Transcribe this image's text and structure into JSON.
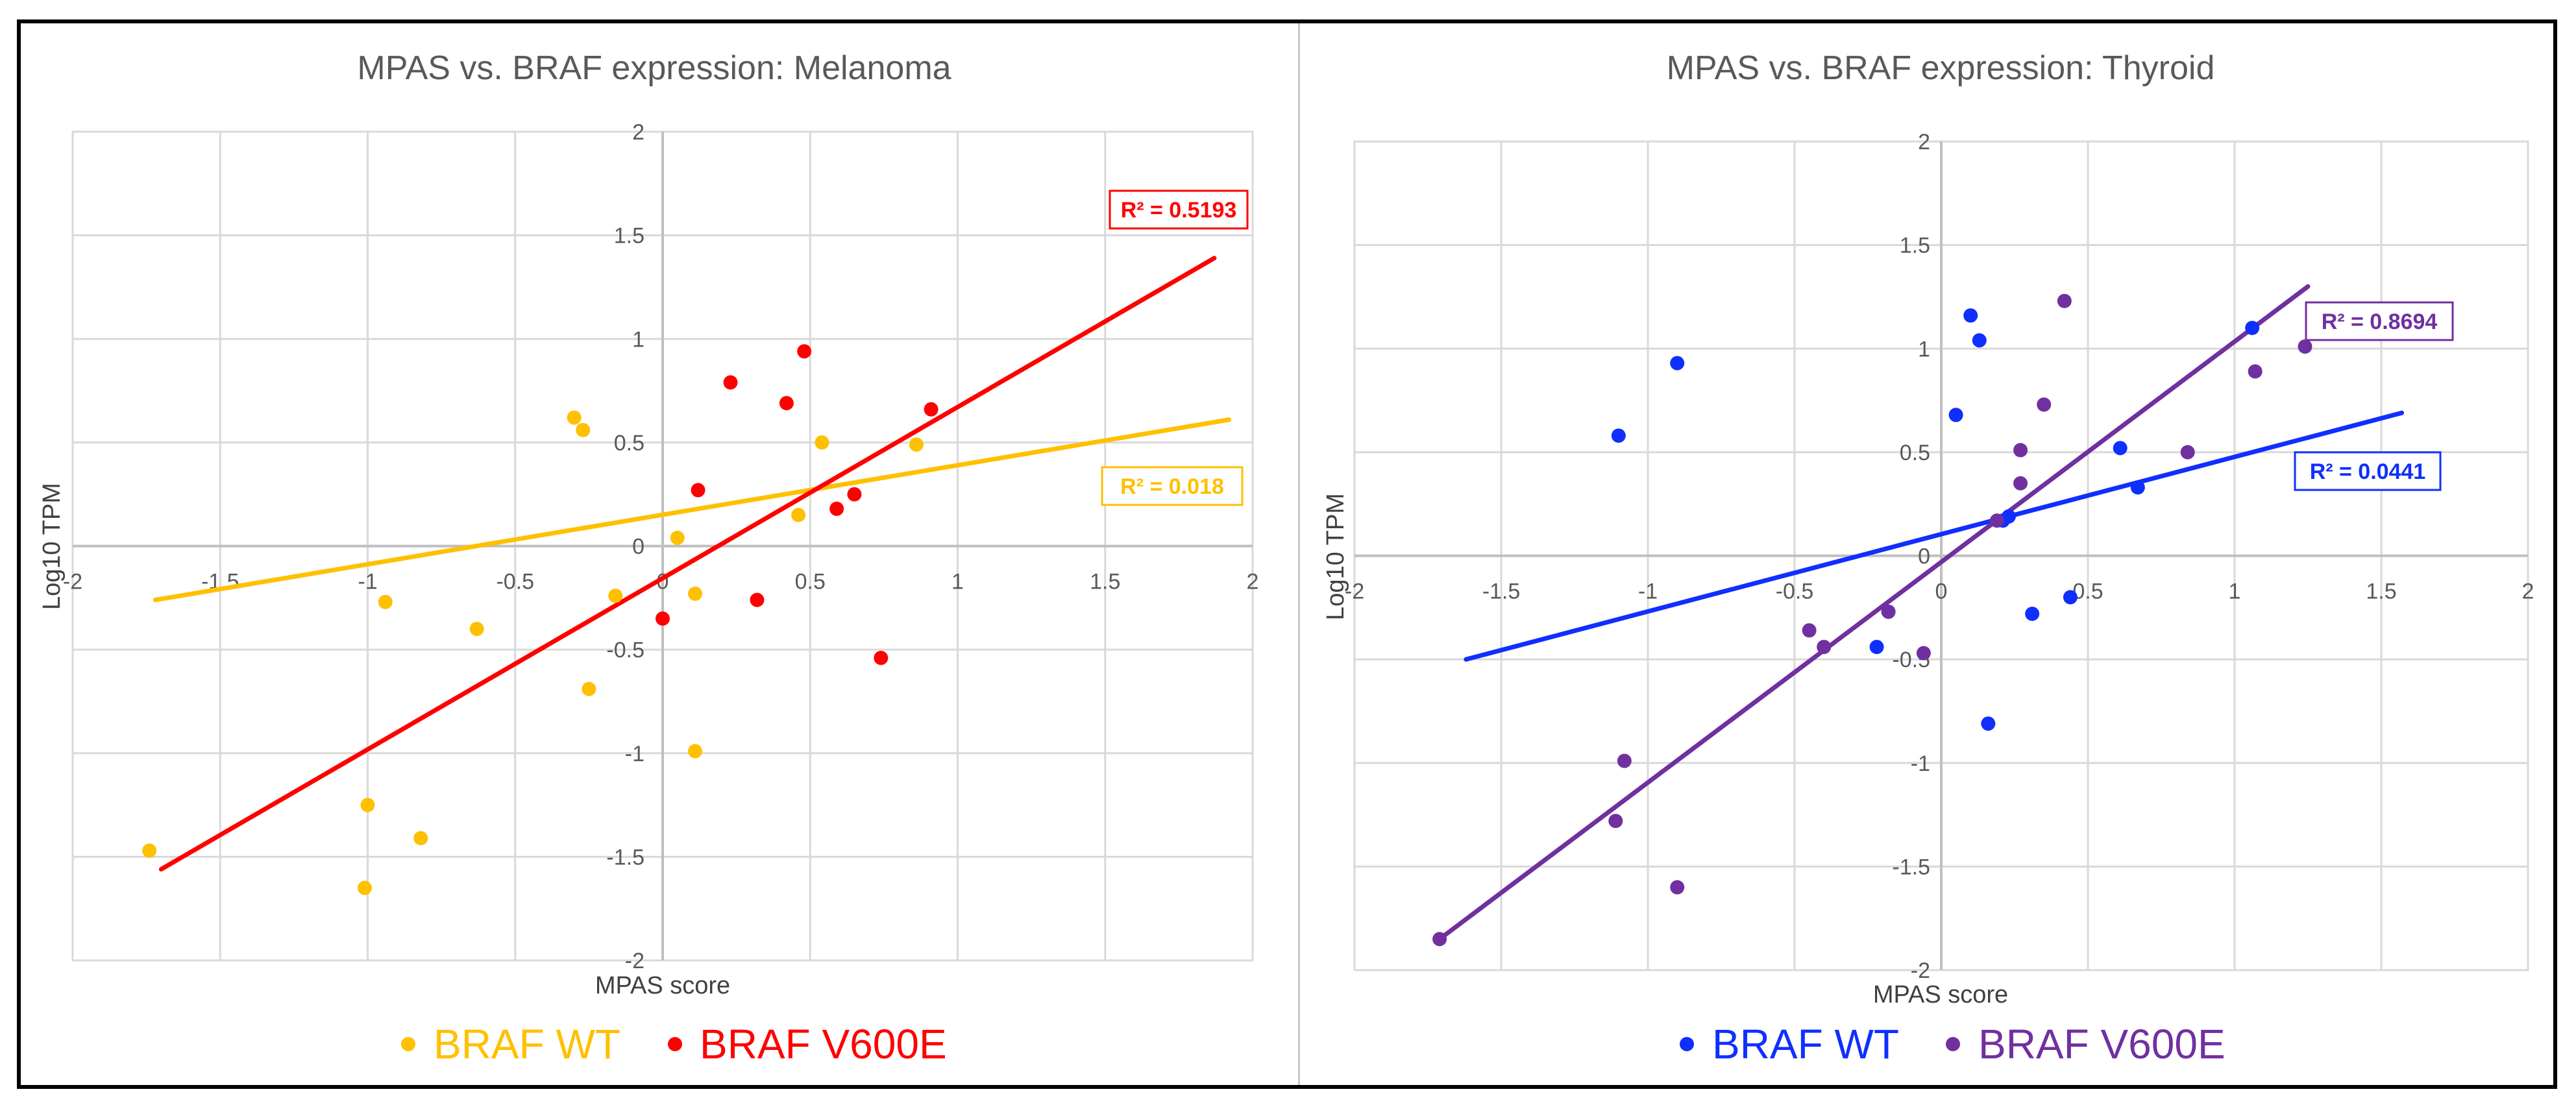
{
  "charts": [
    {
      "title": "MPAS vs. BRAF expression: Melanoma",
      "xlabel": "MPAS score",
      "ylabel": "Log10 TPM",
      "xlim": [
        -2,
        2
      ],
      "ylim": [
        -2,
        2
      ],
      "xticks": [
        -2,
        -1.5,
        -1,
        -0.5,
        0,
        0.5,
        1,
        1.5,
        2
      ],
      "yticks": [
        -2,
        -1.5,
        -1,
        -0.5,
        0,
        0.5,
        1,
        1.5,
        2
      ],
      "xtick_labels": [
        "-2",
        "-1.5",
        "-1",
        "-0.5",
        "0",
        "0.5",
        "1",
        "1.5",
        "2"
      ],
      "ytick_labels": [
        "-2",
        "-1.5",
        "-1",
        "-0.5",
        "0",
        "0.5",
        "1",
        "1.5",
        "2"
      ],
      "series": [
        {
          "name": "BRAF WT",
          "legend_label": "BRAF WT",
          "color": "#FFC000",
          "r2_label": "R² = 0.018",
          "points": [
            [
              -1.74,
              -1.47
            ],
            [
              -1.0,
              -1.25
            ],
            [
              -1.01,
              -1.65
            ],
            [
              -0.82,
              -1.41
            ],
            [
              -0.94,
              -0.27
            ],
            [
              -0.63,
              -0.4
            ],
            [
              -0.3,
              0.62
            ],
            [
              -0.27,
              0.56
            ],
            [
              -0.25,
              -0.69
            ],
            [
              -0.16,
              -0.24
            ],
            [
              0.05,
              0.04
            ],
            [
              0.11,
              -0.23
            ],
            [
              0.11,
              -0.99
            ],
            [
              0.46,
              0.15
            ],
            [
              0.54,
              0.5
            ],
            [
              0.86,
              0.49
            ]
          ],
          "trend": [
            [
              -1.72,
              -0.26
            ],
            [
              1.92,
              0.61
            ]
          ]
        },
        {
          "name": "BRAF V600E",
          "legend_label": "BRAF V600E",
          "color": "#FF0000",
          "r2_label": "R² = 0.5193",
          "points": [
            [
              0.23,
              0.79
            ],
            [
              0.42,
              0.69
            ],
            [
              0.48,
              0.94
            ],
            [
              0.91,
              0.66
            ],
            [
              0.12,
              0.27
            ],
            [
              0.59,
              0.18
            ],
            [
              0.65,
              0.25
            ],
            [
              -0.0,
              -0.35
            ],
            [
              0.32,
              -0.26
            ],
            [
              0.74,
              -0.54
            ]
          ],
          "trend": [
            [
              -1.7,
              -1.56
            ],
            [
              1.87,
              1.39
            ]
          ]
        }
      ]
    },
    {
      "title": "MPAS vs. BRAF expression: Thyroid",
      "xlabel": "MPAS score",
      "ylabel": "Log10 TPM",
      "xlim": [
        -2,
        2
      ],
      "ylim": [
        -2,
        2
      ],
      "xticks": [
        -2,
        -1.5,
        -1,
        -0.5,
        0,
        0.5,
        1,
        1.5,
        2
      ],
      "yticks": [
        -2,
        -1.5,
        -1,
        -0.5,
        0,
        0.5,
        1,
        1.5,
        2
      ],
      "xtick_labels": [
        "-2",
        "-1.5",
        "-1",
        "-0.5",
        "0",
        "0.5",
        "1",
        "1.5",
        "2"
      ],
      "ytick_labels": [
        "-2",
        "-1.5",
        "-1",
        "-0.5",
        "0",
        "0.5",
        "1",
        "1.5",
        "2"
      ],
      "series": [
        {
          "name": "BRAF WT",
          "legend_label": "BRAF WT",
          "color": "#0F2FFF",
          "r2_label": "R² = 0.0441",
          "points": [
            [
              -1.1,
              0.58
            ],
            [
              -0.9,
              0.93
            ],
            [
              0.1,
              1.16
            ],
            [
              0.13,
              1.04
            ],
            [
              0.05,
              0.68
            ],
            [
              0.21,
              0.17
            ],
            [
              0.23,
              0.19
            ],
            [
              0.61,
              0.52
            ],
            [
              0.67,
              0.33
            ],
            [
              1.06,
              1.1
            ],
            [
              -0.22,
              -0.44
            ],
            [
              0.31,
              -0.28
            ],
            [
              0.44,
              -0.2
            ],
            [
              0.16,
              -0.81
            ]
          ],
          "trend": [
            [
              -1.62,
              -0.5
            ],
            [
              1.57,
              0.69
            ]
          ]
        },
        {
          "name": "BRAF V600E",
          "legend_label": "BRAF V600E",
          "color": "#7030A0",
          "r2_label": "R² = 0.8694",
          "points": [
            [
              -1.71,
              -1.85
            ],
            [
              -1.11,
              -1.28
            ],
            [
              -1.08,
              -0.99
            ],
            [
              -0.9,
              -1.6
            ],
            [
              -0.45,
              -0.36
            ],
            [
              -0.4,
              -0.44
            ],
            [
              -0.18,
              -0.27
            ],
            [
              -0.06,
              -0.47
            ],
            [
              0.19,
              0.17
            ],
            [
              0.27,
              0.51
            ],
            [
              0.27,
              0.35
            ],
            [
              0.35,
              0.73
            ],
            [
              0.42,
              1.23
            ],
            [
              0.84,
              0.5
            ],
            [
              1.07,
              0.89
            ],
            [
              1.24,
              1.01
            ]
          ],
          "trend": [
            [
              -1.71,
              -1.85
            ],
            [
              1.25,
              1.3
            ]
          ]
        }
      ]
    }
  ],
  "chart_data": [
    {
      "type": "scatter",
      "title": "MPAS vs. BRAF expression: Melanoma",
      "xlabel": "MPAS score",
      "ylabel": "Log10 TPM",
      "xlim": [
        -2,
        2
      ],
      "ylim": [
        -2,
        2
      ],
      "grid": true,
      "legend": "bottom",
      "series": [
        {
          "name": "BRAF WT",
          "r_squared": 0.018,
          "points": [
            [
              -1.74,
              -1.47
            ],
            [
              -1.0,
              -1.25
            ],
            [
              -1.01,
              -1.65
            ],
            [
              -0.82,
              -1.41
            ],
            [
              -0.94,
              -0.27
            ],
            [
              -0.63,
              -0.4
            ],
            [
              -0.3,
              0.62
            ],
            [
              -0.27,
              0.56
            ],
            [
              -0.25,
              -0.69
            ],
            [
              -0.16,
              -0.24
            ],
            [
              0.05,
              0.04
            ],
            [
              0.11,
              -0.23
            ],
            [
              0.11,
              -0.99
            ],
            [
              0.46,
              0.15
            ],
            [
              0.54,
              0.5
            ],
            [
              0.86,
              0.49
            ]
          ]
        },
        {
          "name": "BRAF V600E",
          "r_squared": 0.5193,
          "points": [
            [
              0.23,
              0.79
            ],
            [
              0.42,
              0.69
            ],
            [
              0.48,
              0.94
            ],
            [
              0.91,
              0.66
            ],
            [
              0.12,
              0.27
            ],
            [
              0.59,
              0.18
            ],
            [
              0.65,
              0.25
            ],
            [
              -0.0,
              -0.35
            ],
            [
              0.32,
              -0.26
            ],
            [
              0.74,
              -0.54
            ]
          ]
        }
      ]
    },
    {
      "type": "scatter",
      "title": "MPAS vs. BRAF expression: Thyroid",
      "xlabel": "MPAS score",
      "ylabel": "Log10 TPM",
      "xlim": [
        -2,
        2
      ],
      "ylim": [
        -2,
        2
      ],
      "grid": true,
      "legend": "bottom",
      "series": [
        {
          "name": "BRAF WT",
          "r_squared": 0.0441,
          "points": [
            [
              -1.1,
              0.58
            ],
            [
              -0.9,
              0.93
            ],
            [
              0.1,
              1.16
            ],
            [
              0.13,
              1.04
            ],
            [
              0.05,
              0.68
            ],
            [
              0.21,
              0.17
            ],
            [
              0.23,
              0.19
            ],
            [
              0.61,
              0.52
            ],
            [
              0.67,
              0.33
            ],
            [
              1.06,
              1.1
            ],
            [
              -0.22,
              -0.44
            ],
            [
              0.31,
              -0.28
            ],
            [
              0.44,
              -0.2
            ],
            [
              0.16,
              -0.81
            ]
          ]
        },
        {
          "name": "BRAF V600E",
          "r_squared": 0.8694,
          "points": [
            [
              -1.71,
              -1.85
            ],
            [
              -1.11,
              -1.28
            ],
            [
              -1.08,
              -0.99
            ],
            [
              -0.9,
              -1.6
            ],
            [
              -0.45,
              -0.36
            ],
            [
              -0.4,
              -0.44
            ],
            [
              -0.18,
              -0.27
            ],
            [
              -0.06,
              -0.47
            ],
            [
              0.19,
              0.17
            ],
            [
              0.27,
              0.51
            ],
            [
              0.27,
              0.35
            ],
            [
              0.35,
              0.73
            ],
            [
              0.42,
              1.23
            ],
            [
              0.84,
              0.5
            ],
            [
              1.07,
              0.89
            ],
            [
              1.24,
              1.01
            ]
          ]
        }
      ]
    }
  ]
}
